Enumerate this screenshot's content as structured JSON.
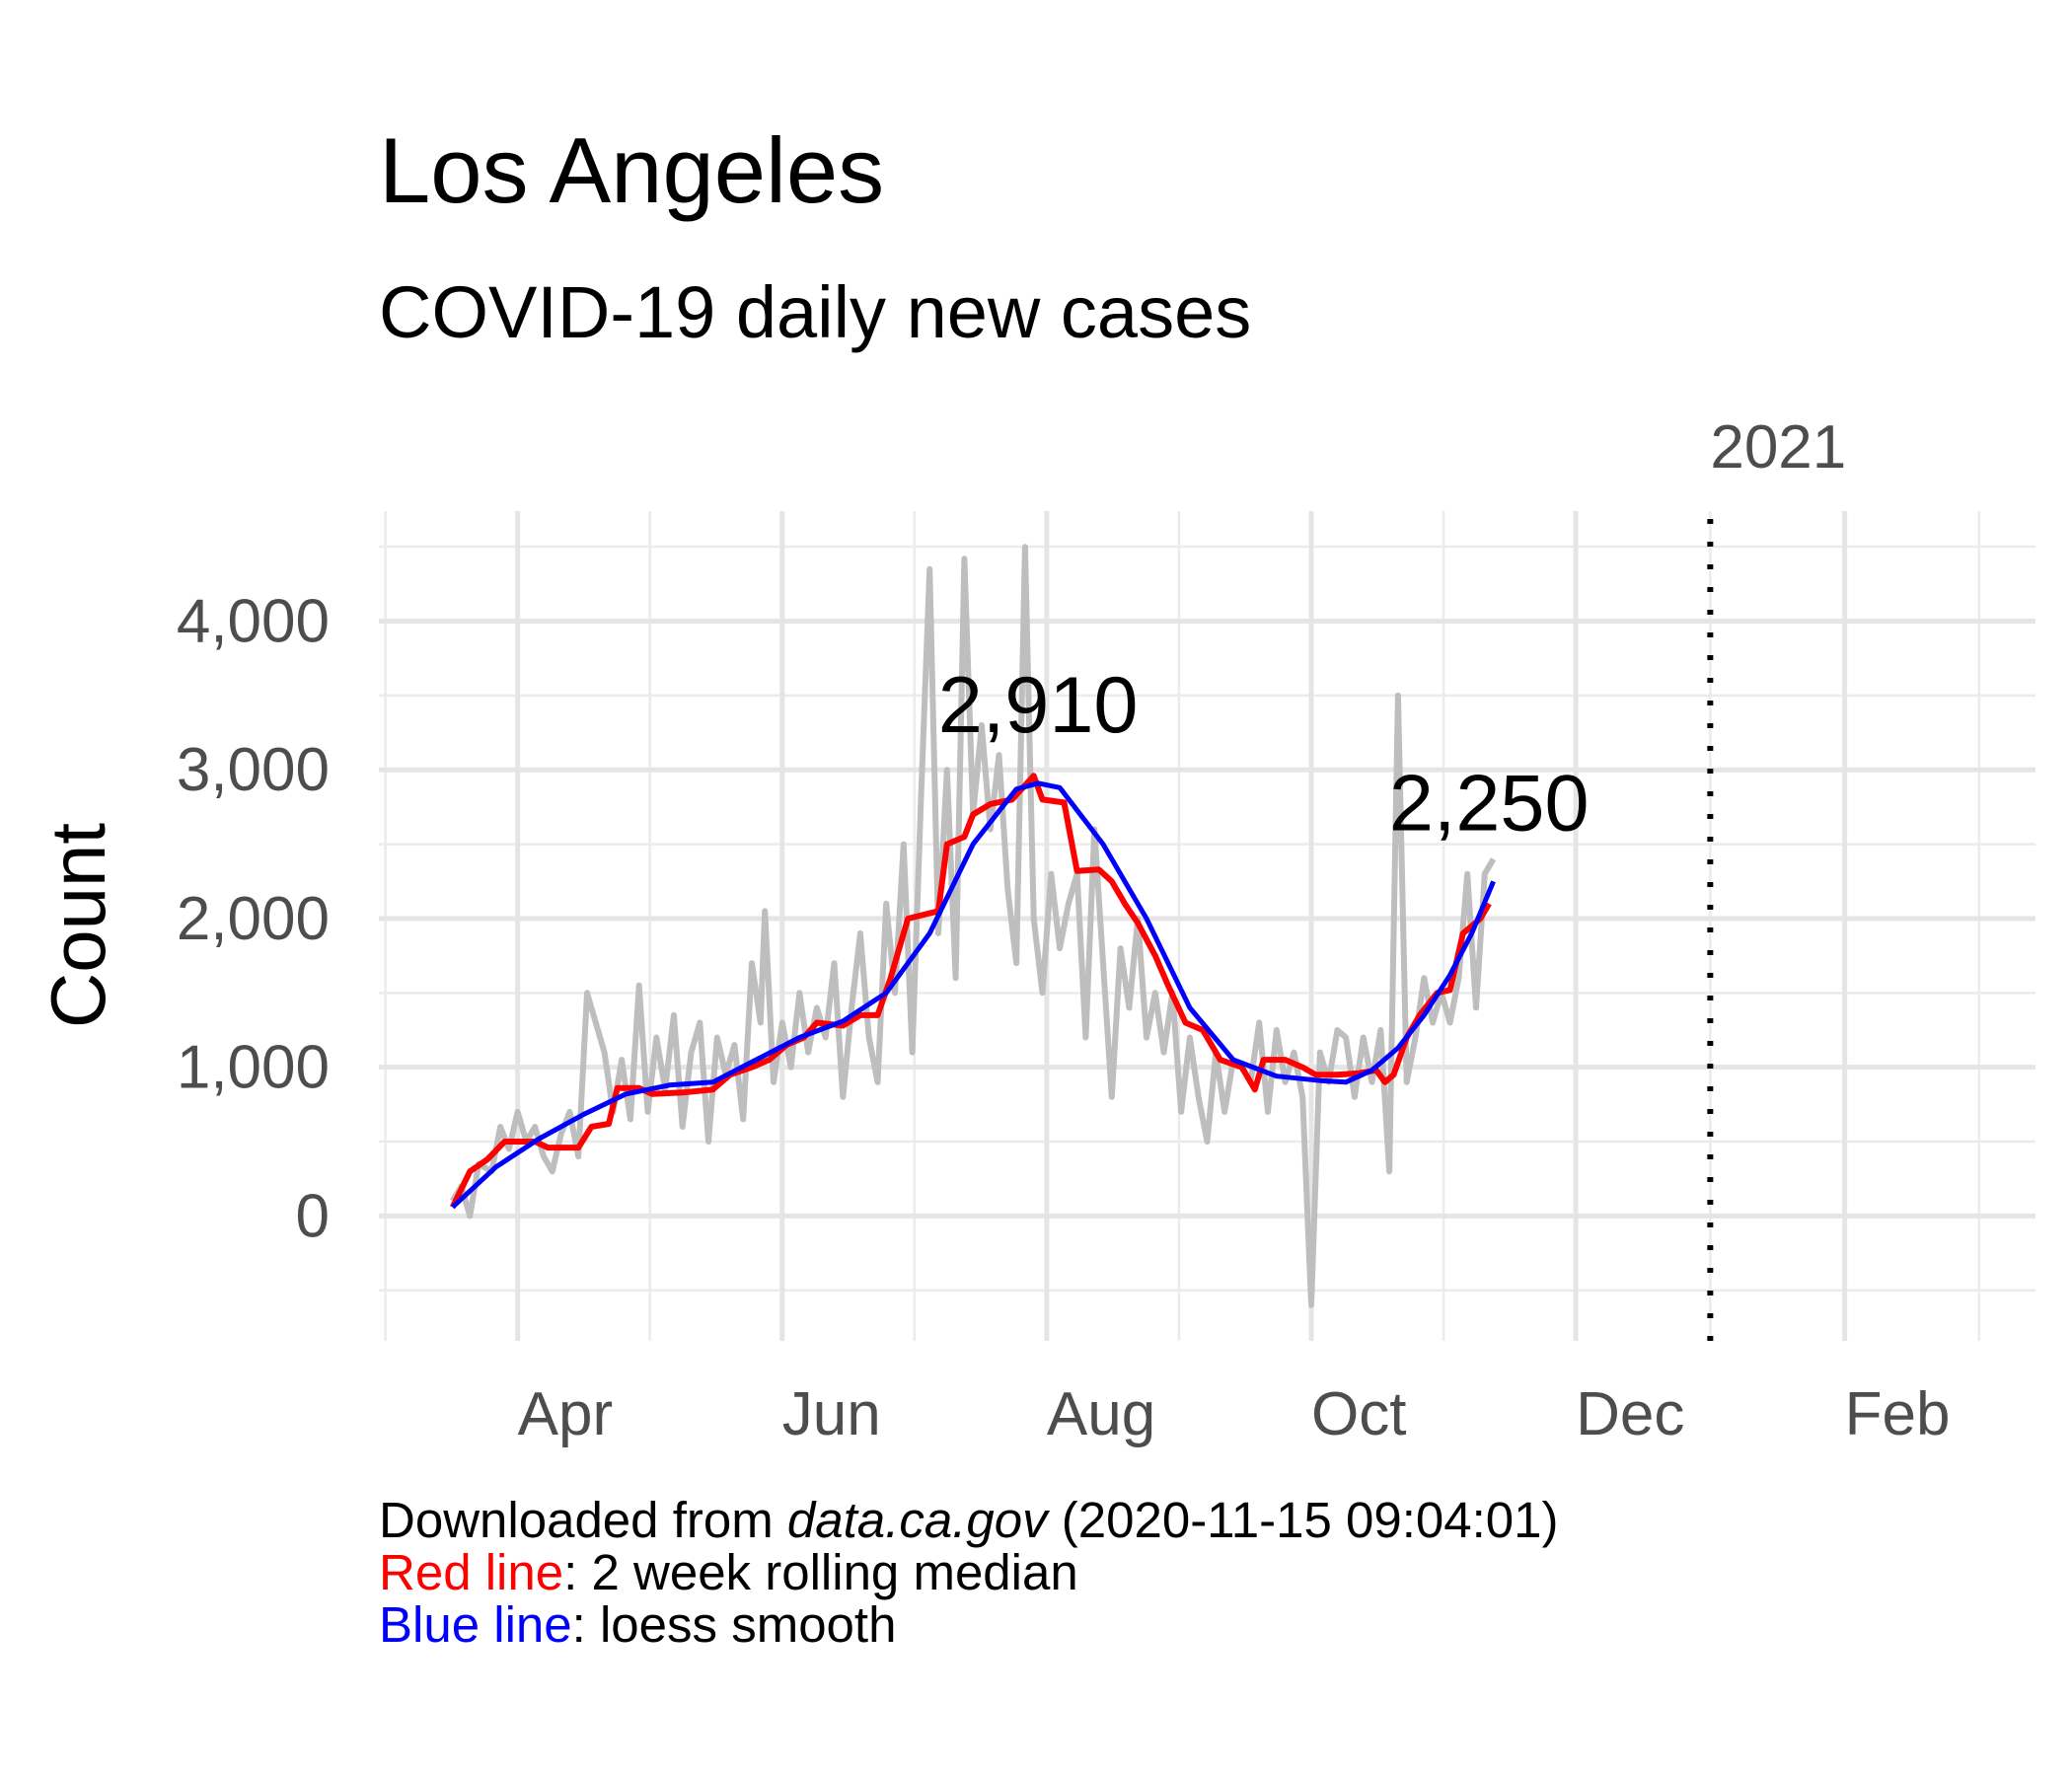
{
  "chart_data": {
    "type": "line",
    "title": "Los Angeles",
    "subtitle": "COVID-19 daily new cases",
    "y_label": "Count",
    "caption": {
      "prefix": "Downloaded from ",
      "source": "data.ca.gov",
      "stamp": " (2020-11-15 09:04:01)",
      "red_note": ": 2 week rolling median",
      "blue_note": ": loess smooth"
    },
    "xlim": [
      -1,
      381
    ],
    "xticks": [
      {
        "value": 31,
        "label": "Apr"
      },
      {
        "value": 92,
        "label": "Jun"
      },
      {
        "value": 153,
        "label": "Aug"
      },
      {
        "value": 214,
        "label": "Oct"
      },
      {
        "value": 275,
        "label": "Dec"
      },
      {
        "value": 337,
        "label": "Feb"
      }
    ],
    "ylim": [
      -840,
      4740
    ],
    "yticks": [
      {
        "value": 0,
        "label": "0"
      },
      {
        "value": 1000,
        "label": "1,000"
      },
      {
        "value": 2000,
        "label": "2,000"
      },
      {
        "value": 3000,
        "label": "3,000"
      },
      {
        "value": 4000,
        "label": "4,000"
      }
    ],
    "grid": true,
    "vline": {
      "x": 306,
      "label": "2021"
    },
    "annotations": [
      {
        "label": "2,910",
        "value": 2910,
        "x": 151
      },
      {
        "label": "2,250",
        "value": 2250,
        "x": 255
      }
    ],
    "series": [
      {
        "color": "#bebebe",
        "width": 6,
        "x": [
          16,
          18,
          20,
          22,
          25,
          27,
          29,
          31,
          33,
          35,
          37,
          39,
          41,
          43,
          45,
          47,
          49,
          51,
          53,
          55,
          57,
          59,
          61,
          63,
          65,
          67,
          69,
          71,
          73,
          75,
          77,
          79,
          81,
          83,
          85,
          87,
          88,
          90,
          92,
          94,
          96,
          98,
          100,
          102,
          104,
          106,
          108,
          110,
          112,
          114,
          116,
          118,
          120,
          122,
          124,
          126,
          128,
          130,
          132,
          134,
          136,
          138,
          140,
          142,
          144,
          146,
          148,
          150,
          152,
          154,
          156,
          158,
          160,
          162,
          164,
          166,
          168,
          170,
          172,
          174,
          176,
          178,
          180,
          182,
          184,
          186,
          188,
          190,
          192,
          194,
          196,
          198,
          200,
          202,
          204,
          206,
          208,
          210,
          212,
          214,
          216,
          218,
          220,
          222,
          224,
          226,
          228,
          230,
          232,
          234,
          236,
          238,
          240,
          242,
          244,
          246,
          248,
          250,
          252,
          254,
          256
        ],
        "values": [
          100,
          200,
          0,
          350,
          300,
          600,
          450,
          700,
          500,
          600,
          400,
          300,
          550,
          700,
          400,
          1500,
          1300,
          1100,
          700,
          1050,
          650,
          1550,
          700,
          1200,
          850,
          1350,
          600,
          1100,
          1300,
          500,
          1200,
          950,
          1150,
          650,
          1700,
          1300,
          2050,
          900,
          1300,
          1000,
          1500,
          1100,
          1400,
          1200,
          1700,
          800,
          1400,
          1900,
          1200,
          900,
          2100,
          1500,
          2500,
          1100,
          2800,
          4350,
          1900,
          3000,
          1600,
          4420,
          2700,
          3300,
          2600,
          3100,
          2200,
          1700,
          4500,
          2000,
          1500,
          2300,
          1800,
          2100,
          2300,
          1200,
          2600,
          1700,
          800,
          1800,
          1400,
          2000,
          1200,
          1500,
          1100,
          1500,
          700,
          1200,
          800,
          500,
          1100,
          700,
          1050,
          1000,
          900,
          1300,
          700,
          1250,
          900,
          1100,
          800,
          -600,
          1100,
          900,
          1250,
          1200,
          800,
          1200,
          900,
          1250,
          300,
          3500,
          900,
          1200,
          1600,
          1300,
          1500,
          1300,
          1600,
          2300,
          1400,
          2300,
          2400
        ]
      },
      {
        "name": "Red line",
        "color": "#ff0000",
        "width": 6,
        "x": [
          16,
          20,
          24,
          28,
          35,
          38,
          45,
          48,
          52,
          54,
          59,
          62,
          69,
          76,
          80,
          85,
          89,
          93,
          97,
          100,
          106,
          110,
          114,
          117,
          121,
          128,
          130,
          134,
          136,
          140,
          145,
          150,
          152,
          157,
          160,
          165,
          168,
          171,
          174,
          178,
          181,
          185,
          189,
          193,
          198,
          201,
          203,
          208,
          212,
          215,
          220,
          225,
          229,
          231,
          233,
          236,
          239,
          243,
          246,
          249,
          253,
          255
        ],
        "values": [
          60,
          300,
          380,
          500,
          500,
          460,
          460,
          600,
          620,
          860,
          860,
          820,
          830,
          850,
          950,
          1000,
          1050,
          1150,
          1200,
          1300,
          1280,
          1350,
          1350,
          1600,
          2000,
          2050,
          2500,
          2550,
          2700,
          2770,
          2800,
          2960,
          2800,
          2780,
          2320,
          2330,
          2250,
          2100,
          1970,
          1750,
          1550,
          1300,
          1250,
          1050,
          1000,
          850,
          1050,
          1050,
          1000,
          950,
          950,
          960,
          980,
          900,
          950,
          1200,
          1350,
          1500,
          1520,
          1900,
          2000,
          2100
        ]
      },
      {
        "name": "Blue line",
        "color": "#0000ff",
        "width": 5,
        "x": [
          16,
          26,
          36,
          46,
          56,
          66,
          76,
          86,
          96,
          106,
          116,
          126,
          136,
          146,
          151,
          156,
          166,
          176,
          186,
          196,
          206,
          216,
          222,
          228,
          234,
          240,
          246,
          251,
          256
        ],
        "values": [
          60,
          330,
          520,
          680,
          820,
          880,
          900,
          1050,
          1200,
          1310,
          1500,
          1900,
          2500,
          2870,
          2910,
          2880,
          2500,
          2000,
          1400,
          1050,
          940,
          910,
          900,
          980,
          1130,
          1350,
          1620,
          1900,
          2250
        ]
      }
    ]
  }
}
